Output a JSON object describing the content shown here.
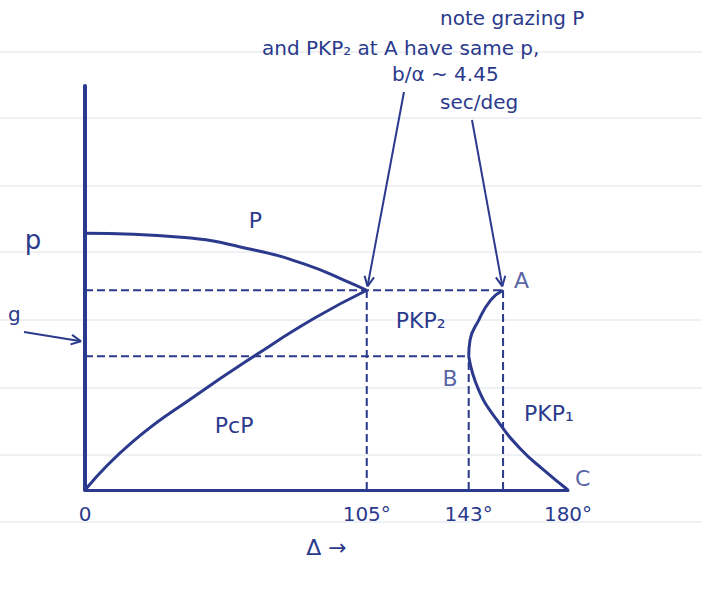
{
  "chart_data": {
    "type": "line",
    "xlabel": "Δ →",
    "ylabel": "p",
    "xlim": [
      0,
      180
    ],
    "ylim": [
      0,
      9
    ],
    "xticks": [
      0,
      {
        "value": 105,
        "label": "105°"
      },
      {
        "value": 143,
        "label": "143°"
      },
      {
        "value": 180,
        "label": "180°"
      }
    ],
    "tick_labels": "x",
    "grid": false,
    "color": "#2b3a8c",
    "series": [
      {
        "name": "P",
        "x": [
          0,
          35.9,
          63.5,
          82.9,
          96.7,
          105
        ],
        "values": [
          5.72,
          5.63,
          5.34,
          5.01,
          4.67,
          4.45
        ]
      },
      {
        "name": "PcP",
        "x": [
          0,
          17.7,
          41.4,
          63.5,
          85.6,
          105
        ],
        "values": [
          0,
          1.07,
          2.11,
          3.0,
          3.83,
          4.45
        ]
      },
      {
        "name": "PKP₂",
        "x": [
          155.8,
          151.2,
          146.7,
          143.5,
          143
        ],
        "values": [
          4.45,
          4.23,
          3.78,
          3.34,
          2.98
        ]
      },
      {
        "name": "PKP₁",
        "x": [
          143,
          146.7,
          153.5,
          162.7,
          170.9,
          180
        ],
        "values": [
          2.98,
          2.23,
          1.56,
          0.89,
          0.45,
          0
        ]
      },
      {
        "x": [
          0,
          155.8
        ],
        "values": [
          4.45,
          4.45
        ],
        "line_style": "dashed"
      },
      {
        "x": [
          0,
          143
        ],
        "values": [
          2.98,
          2.98
        ],
        "line_style": "dashed"
      },
      {
        "x": [
          105,
          105
        ],
        "values": [
          0,
          4.45
        ],
        "line_style": "dashed"
      },
      {
        "x": [
          143,
          143
        ],
        "values": [
          0,
          2.98
        ],
        "line_style": "dashed"
      },
      {
        "x": [
          155.8,
          155.8
        ],
        "values": [
          0,
          4.45
        ],
        "line_style": "dashed"
      }
    ],
    "points": [
      {
        "label": "A",
        "x": 155.8,
        "y": 4.45
      },
      {
        "label": "B",
        "x": 143,
        "y": 2.98
      },
      {
        "label": "C",
        "x": 180,
        "y": 0
      }
    ],
    "annotations": [
      {
        "lines": [
          "note grazing P",
          "and PKP₂ at A have same p,"
        ]
      },
      {
        "lines": [
          "b/α ~ 4.45",
          "sec/deg"
        ],
        "points_to": [
          [
            105,
            4.45
          ],
          [
            155.8,
            4.45
          ]
        ]
      },
      {
        "lines": [
          "g"
        ],
        "points_to": [
          [
            0,
            3.3
          ]
        ]
      }
    ]
  }
}
